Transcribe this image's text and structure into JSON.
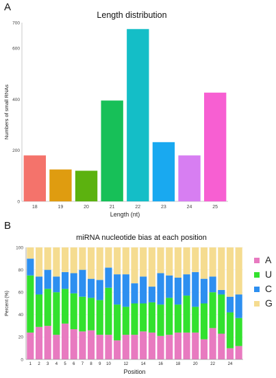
{
  "panels": {
    "a": "A",
    "b": "B"
  },
  "chart_data": [
    {
      "type": "bar",
      "title": "Length distribution",
      "xlabel": "Length (nt)",
      "ylabel": "Numbers of small RNAs",
      "categories": [
        "18",
        "19",
        "20",
        "21",
        "22",
        "23",
        "24",
        "25"
      ],
      "values": [
        180,
        125,
        120,
        395,
        675,
        232,
        180,
        426
      ],
      "colors": [
        "#f4736b",
        "#df9c10",
        "#5cb20f",
        "#17c058",
        "#14bec7",
        "#19a9f0",
        "#d77ef2",
        "#f75fd2"
      ],
      "yticks": [
        0,
        200,
        400,
        600,
        700
      ],
      "ylim": [
        0,
        700
      ],
      "grid": false,
      "legend": "none"
    },
    {
      "type": "bar",
      "stacked": true,
      "title": "miRNA nucleotide bias at each position",
      "xlabel": "Position",
      "ylabel": "Percent (%)",
      "x": [
        1,
        2,
        3,
        4,
        5,
        6,
        7,
        8,
        9,
        10,
        11,
        12,
        13,
        14,
        15,
        16,
        17,
        18,
        19,
        20,
        21,
        22,
        23,
        24,
        25
      ],
      "xtick_labels": [
        "1",
        "2",
        "3",
        "4",
        "5",
        "6",
        "7",
        "8",
        "9",
        "10",
        "",
        "12",
        "",
        "14",
        "",
        "16",
        "",
        "18",
        "",
        "20",
        "",
        "22",
        "",
        "24",
        ""
      ],
      "yticks": [
        0,
        20,
        40,
        60,
        80,
        100
      ],
      "ylim": [
        0,
        100
      ],
      "legend": "right",
      "series": [
        {
          "name": "A",
          "color": "#e87ac0",
          "values": [
            24,
            29,
            30,
            22,
            32,
            27,
            25,
            26,
            22,
            22,
            17,
            22,
            22,
            25,
            24,
            21,
            22,
            24,
            24,
            24,
            18,
            28,
            23,
            10,
            12
          ]
        },
        {
          "name": "U",
          "color": "#33e12e",
          "values": [
            51,
            29,
            33,
            38,
            31,
            32,
            31,
            29,
            31,
            42,
            32,
            25,
            28,
            25,
            27,
            28,
            33,
            25,
            33,
            23,
            32,
            32,
            35,
            32,
            25
          ]
        },
        {
          "name": "C",
          "color": "#2d8ff0",
          "values": [
            15,
            16,
            17,
            14,
            15,
            18,
            24,
            17,
            18,
            18,
            27,
            29,
            18,
            24,
            14,
            28,
            20,
            24,
            19,
            31,
            22,
            14,
            4,
            14,
            21
          ]
        },
        {
          "name": "G",
          "color": "#f5dc90",
          "values": [
            10,
            26,
            20,
            26,
            22,
            23,
            20,
            28,
            29,
            18,
            24,
            24,
            32,
            26,
            35,
            23,
            25,
            27,
            24,
            22,
            28,
            26,
            38,
            44,
            42
          ]
        }
      ]
    }
  ]
}
